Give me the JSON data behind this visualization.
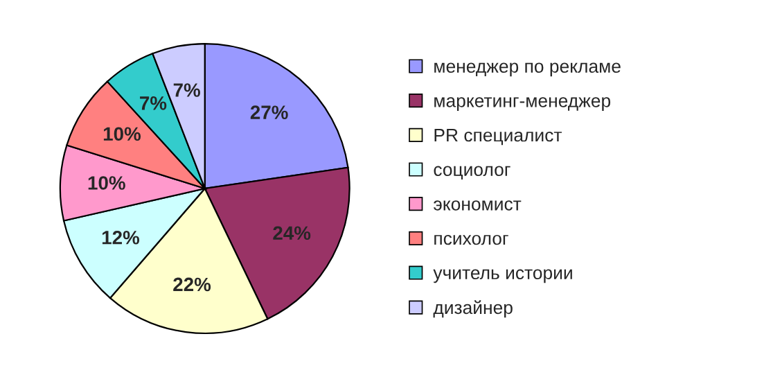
{
  "chart_data": {
    "type": "pie",
    "categories": [
      "менеджер по рекламе",
      "маркетинг-менеджер",
      "PR специалист",
      "социолог",
      "экономист",
      "психолог",
      "учитель истории",
      "дизайнер"
    ],
    "values": [
      27,
      24,
      22,
      12,
      10,
      10,
      7,
      7
    ],
    "colors": [
      "#9999ff",
      "#993366",
      "#ffffcc",
      "#ccffff",
      "#ff99cc",
      "#ff8080",
      "#33cccc",
      "#ccccff"
    ],
    "value_labels": [
      "27%",
      "24%",
      "22%",
      "12%",
      "10%",
      "10%",
      "7%",
      "7%"
    ],
    "legend": "right"
  }
}
